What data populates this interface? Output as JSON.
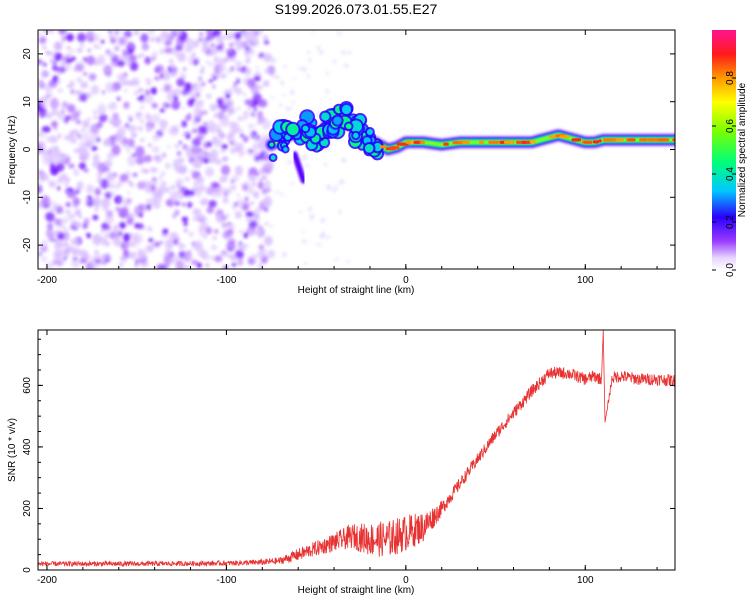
{
  "title": "S199.2026.073.01.55.E27",
  "chart_data": [
    {
      "type": "heatmap",
      "title": "S199.2026.073.01.55.E27",
      "xlabel": "Height of straight line (km)",
      "ylabel": "Frequency (Hz)",
      "xlim": [
        -205,
        150
      ],
      "ylim": [
        -25,
        25
      ],
      "xticks": [
        "-200",
        "-100",
        "0",
        "100"
      ],
      "yticks": [
        "-20",
        "-10",
        "0",
        "10",
        "20"
      ],
      "noise_region_x": [
        -205,
        -75
      ],
      "ridge": {
        "x": [
          -75,
          -65,
          -55,
          -48,
          -42,
          -35,
          -30,
          -25,
          -20,
          -15,
          -10,
          -5,
          0,
          10,
          20,
          30,
          40,
          50,
          60,
          70,
          80,
          85,
          90,
          100,
          105,
          110,
          120,
          130,
          140,
          150
        ],
        "y": [
          1,
          3,
          4,
          3,
          6,
          7,
          5,
          3,
          2,
          1,
          0,
          0.5,
          1.5,
          1.5,
          1,
          1.5,
          1.5,
          1.5,
          1.5,
          1.5,
          2.5,
          3,
          2.5,
          1.5,
          1.5,
          2,
          2,
          2,
          2,
          2
        ]
      },
      "colorbar": {
        "label": "Normalized spectral amplitude",
        "ticks": [
          "0.0",
          "0.2",
          "0.4",
          "0.6",
          "0.8"
        ],
        "range": [
          0,
          1
        ]
      }
    },
    {
      "type": "line",
      "xlabel": "Height of straight line (km)",
      "ylabel": "SNR (10 * v/v)",
      "xlim": [
        -205,
        150
      ],
      "ylim": [
        0,
        780
      ],
      "xticks": [
        "-200",
        "-100",
        "0",
        "100"
      ],
      "yticks": [
        "0",
        "200",
        "400",
        "600"
      ],
      "series": [
        {
          "name": "SNR",
          "color": "#e83232",
          "x": [
            -205,
            -150,
            -100,
            -80,
            -70,
            -60,
            -50,
            -40,
            -30,
            -20,
            -10,
            0,
            10,
            20,
            30,
            40,
            50,
            60,
            70,
            75,
            80,
            90,
            100,
            105,
            109,
            110,
            111,
            115,
            120,
            130,
            140,
            150
          ],
          "y": [
            20,
            20,
            22,
            25,
            30,
            50,
            70,
            90,
            110,
            100,
            100,
            120,
            140,
            200,
            280,
            360,
            440,
            510,
            580,
            610,
            640,
            640,
            620,
            630,
            620,
            780,
            480,
            625,
            630,
            620,
            620,
            615
          ],
          "noise": [
            8,
            8,
            8,
            10,
            12,
            20,
            25,
            30,
            40,
            55,
            60,
            60,
            50,
            25,
            20,
            20,
            20,
            20,
            20,
            20,
            20,
            20,
            20,
            20,
            20,
            0,
            0,
            20,
            20,
            20,
            20,
            20
          ]
        }
      ]
    }
  ]
}
